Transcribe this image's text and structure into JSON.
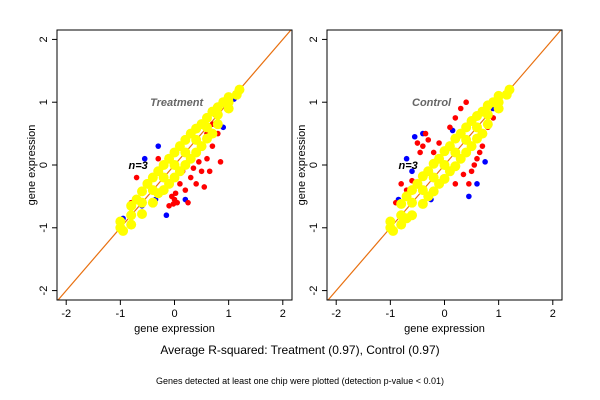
{
  "chart_data": [
    {
      "type": "scatter",
      "title": "",
      "xlabel": "gene expression",
      "ylabel": "gene expression",
      "xlim": [
        -2.17,
        2.17
      ],
      "ylim": [
        -2.15,
        2.15
      ],
      "xticks": [
        "-2",
        "-1",
        "0",
        "1",
        "2"
      ],
      "yticks": [
        "-2",
        "-1",
        "0",
        "1",
        "2"
      ],
      "grid": false,
      "annotations": [
        {
          "text": "Treatment",
          "x": -0.45,
          "y": 1.0,
          "color": "#666666"
        },
        {
          "text": "n=3",
          "x": -0.85,
          "y": 0.0,
          "color": "#000000"
        }
      ],
      "reference_line": {
        "slope": 1,
        "intercept": 0,
        "color": "#e87010"
      },
      "series": [
        {
          "color": "#0000ff",
          "points": [
            [
              -0.55,
              0.1
            ],
            [
              -0.15,
              -0.8
            ],
            [
              -0.35,
              -0.55
            ],
            [
              0.2,
              -0.55
            ],
            [
              0.8,
              0.95
            ],
            [
              1.1,
              1.05
            ],
            [
              -0.95,
              -0.85
            ],
            [
              -0.6,
              -0.65
            ],
            [
              -0.3,
              0.3
            ],
            [
              0.9,
              0.6
            ]
          ]
        },
        {
          "color": "#ff0000",
          "points": [
            [
              0,
              -0.55
            ],
            [
              0.05,
              -0.6
            ],
            [
              -0.05,
              -0.5
            ],
            [
              0.02,
              -0.45
            ],
            [
              -0.02,
              -0.62
            ],
            [
              0.3,
              -0.2
            ],
            [
              0.5,
              -0.1
            ],
            [
              0.6,
              0.1
            ],
            [
              0.7,
              0.3
            ],
            [
              0.8,
              0.5
            ],
            [
              0.75,
              0.8
            ],
            [
              -0.5,
              -0.3
            ],
            [
              -0.8,
              -0.6
            ],
            [
              0.2,
              -0.4
            ],
            [
              0.4,
              -0.3
            ],
            [
              -0.3,
              0.1
            ],
            [
              0.1,
              -0.3
            ],
            [
              0.55,
              -0.35
            ],
            [
              0.65,
              -0.1
            ],
            [
              0.85,
              0.05
            ],
            [
              0.45,
              0.05
            ],
            [
              0.35,
              -0.05
            ],
            [
              -0.4,
              -0.6
            ],
            [
              -0.1,
              -0.65
            ],
            [
              0.25,
              -0.6
            ],
            [
              0.6,
              0.5
            ],
            [
              0.7,
              0.65
            ],
            [
              -0.7,
              -0.2
            ],
            [
              0.15,
              -0.1
            ]
          ]
        },
        {
          "color": "#ffff00",
          "points": [
            [
              -1,
              -1
            ],
            [
              -1,
              -0.9
            ],
            [
              -0.95,
              -1.05
            ],
            [
              -0.8,
              -0.8
            ],
            [
              -0.8,
              -0.65
            ],
            [
              -0.8,
              -0.95
            ],
            [
              -0.6,
              -0.6
            ],
            [
              -0.6,
              -0.42
            ],
            [
              -0.6,
              -0.78
            ],
            [
              -0.4,
              -0.4
            ],
            [
              -0.4,
              -0.2
            ],
            [
              -0.4,
              -0.6
            ],
            [
              -0.2,
              -0.2
            ],
            [
              -0.2,
              0
            ],
            [
              -0.2,
              -0.4
            ],
            [
              0,
              0
            ],
            [
              0,
              0.2
            ],
            [
              0,
              -0.2
            ],
            [
              0.2,
              0.2
            ],
            [
              0.2,
              0.4
            ],
            [
              0.2,
              0
            ],
            [
              0.4,
              0.4
            ],
            [
              0.4,
              0.58
            ],
            [
              0.4,
              0.2
            ],
            [
              0.6,
              0.6
            ],
            [
              0.6,
              0.75
            ],
            [
              0.6,
              0.42
            ],
            [
              0.8,
              0.8
            ],
            [
              0.8,
              0.92
            ],
            [
              0.8,
              0.65
            ],
            [
              1,
              1
            ],
            [
              1,
              1.08
            ],
            [
              1,
              0.9
            ],
            [
              1.2,
              1.2
            ],
            [
              1.15,
              1.12
            ],
            [
              -0.7,
              -0.55
            ],
            [
              -0.5,
              -0.3
            ],
            [
              -0.3,
              -0.1
            ],
            [
              -0.1,
              0.1
            ],
            [
              0.1,
              0.3
            ],
            [
              0.3,
              0.5
            ],
            [
              0.5,
              0.65
            ],
            [
              0.7,
              0.85
            ],
            [
              0.9,
              1.0
            ],
            [
              -0.3,
              -0.45
            ],
            [
              -0.1,
              -0.3
            ],
            [
              0.1,
              -0.1
            ],
            [
              0.3,
              0.1
            ],
            [
              0.5,
              0.3
            ],
            [
              0.7,
              0.5
            ]
          ]
        }
      ]
    },
    {
      "type": "scatter",
      "title": "",
      "xlabel": "gene expression",
      "ylabel": "gene expression",
      "xlim": [
        -2.17,
        2.17
      ],
      "ylim": [
        -2.15,
        2.15
      ],
      "xticks": [
        "-2",
        "-1",
        "0",
        "1",
        "2"
      ],
      "yticks": [
        "-2",
        "-1",
        "0",
        "1",
        "2"
      ],
      "grid": false,
      "annotations": [
        {
          "text": "Control",
          "x": -0.6,
          "y": 1.0,
          "color": "#666666"
        },
        {
          "text": "n=3",
          "x": -0.85,
          "y": 0.0,
          "color": "#000000"
        }
      ],
      "reference_line": {
        "slope": 1,
        "intercept": 0,
        "color": "#e87010"
      },
      "series": [
        {
          "color": "#0000ff",
          "points": [
            [
              -0.6,
              -0.1
            ],
            [
              -0.55,
              0.45
            ],
            [
              -0.25,
              -0.55
            ],
            [
              0.6,
              -0.3
            ],
            [
              0.75,
              0.05
            ],
            [
              -0.85,
              -0.55
            ],
            [
              0.9,
              0.9
            ],
            [
              0.15,
              0.55
            ],
            [
              -0.7,
              0.1
            ],
            [
              0.45,
              -0.5
            ],
            [
              -0.4,
              0.5
            ]
          ]
        },
        {
          "color": "#ff0000",
          "points": [
            [
              -0.5,
              0.35
            ],
            [
              -0.4,
              0.3
            ],
            [
              -0.3,
              0.4
            ],
            [
              0.6,
              0.1
            ],
            [
              0.5,
              -0.1
            ],
            [
              0.7,
              0.3
            ],
            [
              -0.7,
              -0.4
            ],
            [
              0.3,
              0.9
            ],
            [
              0.4,
              1.0
            ],
            [
              0.2,
              -0.3
            ],
            [
              -0.2,
              0.2
            ],
            [
              0.8,
              0.6
            ],
            [
              -0.9,
              -0.6
            ],
            [
              0.1,
              0.6
            ],
            [
              0.35,
              -0.15
            ],
            [
              -0.45,
              0.2
            ],
            [
              -0.35,
              0.5
            ],
            [
              0.55,
              0.0
            ],
            [
              0.65,
              0.2
            ],
            [
              -0.6,
              -0.25
            ],
            [
              0.2,
              0.75
            ],
            [
              -0.1,
              0.35
            ],
            [
              0.45,
              -0.3
            ],
            [
              -0.8,
              -0.3
            ],
            [
              0.9,
              0.75
            ]
          ]
        },
        {
          "color": "#ffff00",
          "points": [
            [
              -1,
              -1
            ],
            [
              -1,
              -0.9
            ],
            [
              -0.95,
              -1.05
            ],
            [
              -0.8,
              -0.8
            ],
            [
              -0.8,
              -0.62
            ],
            [
              -0.8,
              -0.95
            ],
            [
              -0.6,
              -0.6
            ],
            [
              -0.6,
              -0.4
            ],
            [
              -0.6,
              -0.8
            ],
            [
              -0.4,
              -0.4
            ],
            [
              -0.4,
              -0.18
            ],
            [
              -0.4,
              -0.62
            ],
            [
              -0.2,
              -0.2
            ],
            [
              -0.2,
              0.02
            ],
            [
              -0.2,
              -0.42
            ],
            [
              0,
              0
            ],
            [
              0,
              0.22
            ],
            [
              0,
              -0.22
            ],
            [
              0.2,
              0.2
            ],
            [
              0.2,
              0.42
            ],
            [
              0.2,
              -0.02
            ],
            [
              0.4,
              0.4
            ],
            [
              0.4,
              0.6
            ],
            [
              0.4,
              0.2
            ],
            [
              0.6,
              0.6
            ],
            [
              0.6,
              0.78
            ],
            [
              0.6,
              0.42
            ],
            [
              0.8,
              0.8
            ],
            [
              0.8,
              0.95
            ],
            [
              0.8,
              0.65
            ],
            [
              1,
              1
            ],
            [
              1,
              1.1
            ],
            [
              1,
              0.9
            ],
            [
              1.2,
              1.2
            ],
            [
              1.15,
              1.12
            ],
            [
              -0.7,
              -0.5
            ],
            [
              -0.5,
              -0.3
            ],
            [
              -0.3,
              -0.1
            ],
            [
              -0.1,
              0.1
            ],
            [
              0.1,
              0.3
            ],
            [
              0.3,
              0.5
            ],
            [
              0.5,
              0.7
            ],
            [
              0.7,
              0.85
            ],
            [
              0.9,
              1.0
            ],
            [
              -0.7,
              -0.85
            ],
            [
              -0.3,
              -0.5
            ],
            [
              -0.1,
              -0.3
            ],
            [
              0.1,
              -0.1
            ],
            [
              0.3,
              0.1
            ],
            [
              0.5,
              0.3
            ],
            [
              0.7,
              0.5
            ]
          ]
        }
      ]
    }
  ],
  "footer": {
    "r_squared": "Average R-squared: Treatment (0.97), Control (0.97)",
    "note": "Genes detected at least one chip were plotted (detection p-value < 0.01)"
  }
}
